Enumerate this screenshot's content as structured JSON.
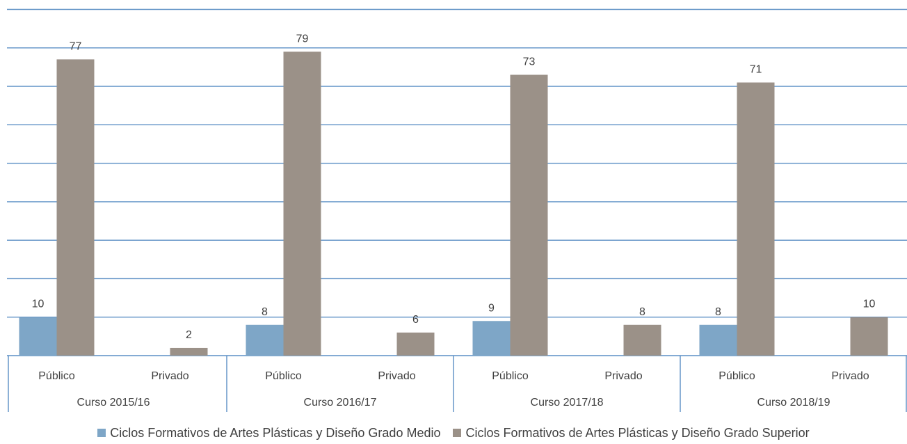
{
  "chart_data": {
    "type": "bar",
    "groups": [
      {
        "label": "Curso 2015/16",
        "categories": [
          "Público",
          "Privado"
        ]
      },
      {
        "label": "Curso 2016/17",
        "categories": [
          "Público",
          "Privado"
        ]
      },
      {
        "label": "Curso 2017/18",
        "categories": [
          "Público",
          "Privado"
        ]
      },
      {
        "label": "Curso 2018/19",
        "categories": [
          "Público",
          "Privado"
        ]
      }
    ],
    "series": [
      {
        "name": "Ciclos Formativos de Artes Plásticas y Diseño Grado Medio",
        "color": "#7ea6c7",
        "values": [
          [
            10,
            0
          ],
          [
            8,
            0
          ],
          [
            9,
            0
          ],
          [
            8,
            0
          ]
        ]
      },
      {
        "name": "Ciclos Formativos de Artes Plásticas y Diseño Grado Superior",
        "color": "#9b9188",
        "values": [
          [
            77,
            2
          ],
          [
            79,
            6
          ],
          [
            73,
            8
          ],
          [
            71,
            10
          ]
        ]
      }
    ],
    "ylim": [
      0,
      90
    ],
    "grid_step": 10,
    "grid": true,
    "legend_position": "bottom"
  }
}
